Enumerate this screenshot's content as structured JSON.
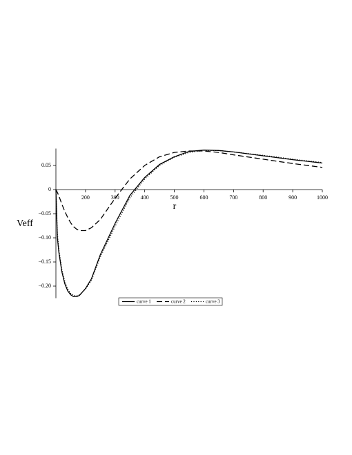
{
  "chart_data": {
    "type": "line",
    "xlabel": "r",
    "ylabel": "Veff",
    "x": [
      100,
      105,
      110,
      120,
      130,
      140,
      150,
      160,
      170,
      180,
      200,
      220,
      250,
      300,
      350,
      400,
      450,
      500,
      550,
      600,
      650,
      700,
      800,
      900,
      1000
    ],
    "series": [
      {
        "name": "curve 1",
        "color": "#000000",
        "style": "solid",
        "values": [
          0,
          -0.1,
          -0.13,
          -0.17,
          -0.195,
          -0.21,
          -0.218,
          -0.222,
          -0.222,
          -0.219,
          -0.205,
          -0.185,
          -0.135,
          -0.07,
          -0.012,
          0.025,
          0.052,
          0.068,
          0.079,
          0.082,
          0.081,
          0.078,
          0.07,
          0.062,
          0.055
        ]
      },
      {
        "name": "curve 2",
        "color": "#000000",
        "style": "dash",
        "values": [
          0,
          -0.006,
          -0.013,
          -0.03,
          -0.045,
          -0.058,
          -0.069,
          -0.077,
          -0.082,
          -0.085,
          -0.085,
          -0.079,
          -0.062,
          -0.018,
          0.022,
          0.05,
          0.068,
          0.077,
          0.08,
          0.08,
          0.077,
          0.072,
          0.063,
          0.054,
          0.046
        ]
      },
      {
        "name": "curve 3",
        "color": "#000000",
        "style": "dot",
        "values": [
          0,
          -0.09,
          -0.125,
          -0.165,
          -0.19,
          -0.206,
          -0.215,
          -0.219,
          -0.22,
          -0.218,
          -0.206,
          -0.188,
          -0.14,
          -0.076,
          -0.017,
          0.022,
          0.05,
          0.067,
          0.077,
          0.081,
          0.081,
          0.078,
          0.071,
          0.063,
          0.056
        ]
      }
    ],
    "xlim": [
      100,
      1000
    ],
    "ylim": [
      -0.225,
      0.085
    ],
    "xticks": [
      200,
      300,
      400,
      500,
      600,
      700,
      800,
      900,
      1000
    ],
    "yticks": [
      0.05,
      0,
      {
        "value": -0.05,
        "label": "−0.05"
      },
      {
        "value": -0.1,
        "label": "−0.10"
      },
      {
        "value": -0.15,
        "label": "−0.15"
      },
      {
        "value": -0.2,
        "label": "−0.20"
      }
    ],
    "legend": "bottom"
  }
}
